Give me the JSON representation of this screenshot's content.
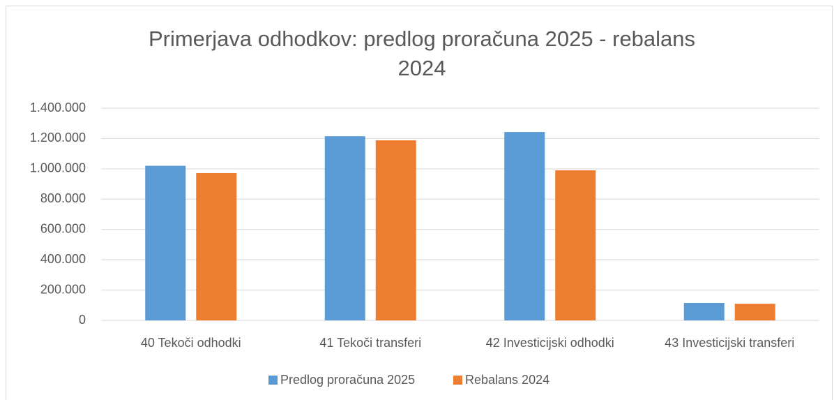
{
  "chart_data": {
    "type": "bar",
    "title_lines": [
      "Primerjava odhodkov: predlog proračuna 2025 - rebalans",
      "2024"
    ],
    "categories": [
      "40 Tekoči odhodki",
      "41 Tekoči transferi",
      "42 Investicijski odhodki",
      "43 Investicijski transferi"
    ],
    "series": [
      {
        "name": "Predlog proračuna 2025",
        "color": "#5b9bd5",
        "values": [
          1020000,
          1215000,
          1243000,
          115000
        ]
      },
      {
        "name": "Rebalans 2024",
        "color": "#ed7d31",
        "values": [
          972000,
          1188000,
          990000,
          110000
        ]
      }
    ],
    "ylim": [
      0,
      1400000
    ],
    "yticks": [
      0,
      {
        "value": 200000,
        "label": "200.000"
      },
      {
        "value": 400000,
        "label": "400.000"
      },
      {
        "value": 600000,
        "label": "600.000"
      },
      {
        "value": 800000,
        "label": "800.000"
      },
      {
        "value": 1000000,
        "label": "1.000.000"
      },
      {
        "value": 1200000,
        "label": "1.200.000"
      },
      {
        "value": 1400000,
        "label": "1.400.000"
      }
    ],
    "grid": true,
    "legend": "bottom"
  }
}
